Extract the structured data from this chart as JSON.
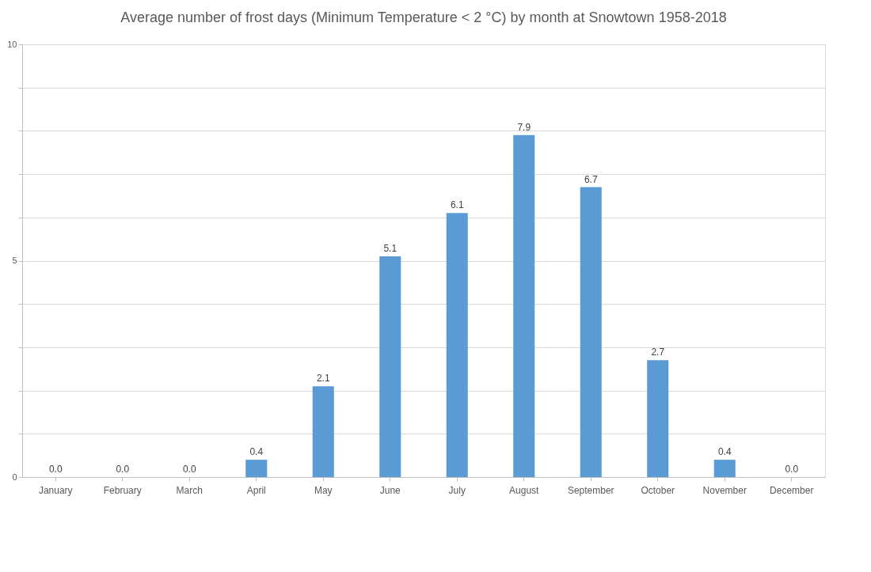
{
  "chart_data": {
    "type": "bar",
    "title": "Average number of frost days (Minimum Temperature < 2 °C) by month at Snowtown 1958-2018",
    "categories": [
      "January",
      "February",
      "March",
      "April",
      "May",
      "June",
      "July",
      "August",
      "September",
      "October",
      "November",
      "December"
    ],
    "values": [
      0.0,
      0.0,
      0.0,
      0.4,
      2.1,
      5.1,
      6.1,
      7.9,
      6.7,
      2.7,
      0.4,
      0.0
    ],
    "value_labels": [
      "0.0",
      "0.0",
      "0.0",
      "0.4",
      "2.1",
      "5.1",
      "6.1",
      "7.9",
      "6.7",
      "2.7",
      "0.4",
      "0.0"
    ],
    "color": "#5b9bd5",
    "ylim": [
      0,
      10
    ],
    "yticks": [
      0,
      {
        "value": 1,
        "label": null
      },
      {
        "value": 2,
        "label": null
      },
      {
        "value": 3,
        "label": null
      },
      {
        "value": 4,
        "label": null
      },
      5,
      {
        "value": 6,
        "label": null
      },
      {
        "value": 7,
        "label": null
      },
      {
        "value": 8,
        "label": null
      },
      {
        "value": 9,
        "label": null
      },
      10
    ],
    "grid": "y"
  }
}
